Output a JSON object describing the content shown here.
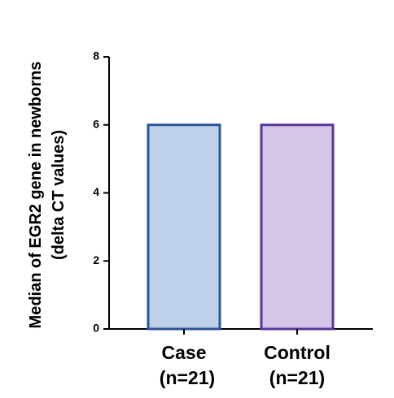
{
  "chart_data": {
    "type": "bar",
    "y_label": [
      "Median of EGR2 gene in newborns",
      "(delta CT values)"
    ],
    "categories": [
      [
        "Case",
        "(n=21)"
      ],
      [
        "Control",
        "(n=21)"
      ]
    ],
    "series": [
      {
        "values": [
          6,
          6
        ],
        "colors": [
          "#bfd0ea",
          "#d3c6e8"
        ],
        "edge_colors": [
          "#2c5597",
          "#5a3597"
        ]
      }
    ],
    "ylim": [
      0,
      8
    ],
    "yticks": [
      0,
      2,
      4,
      6,
      8
    ]
  }
}
